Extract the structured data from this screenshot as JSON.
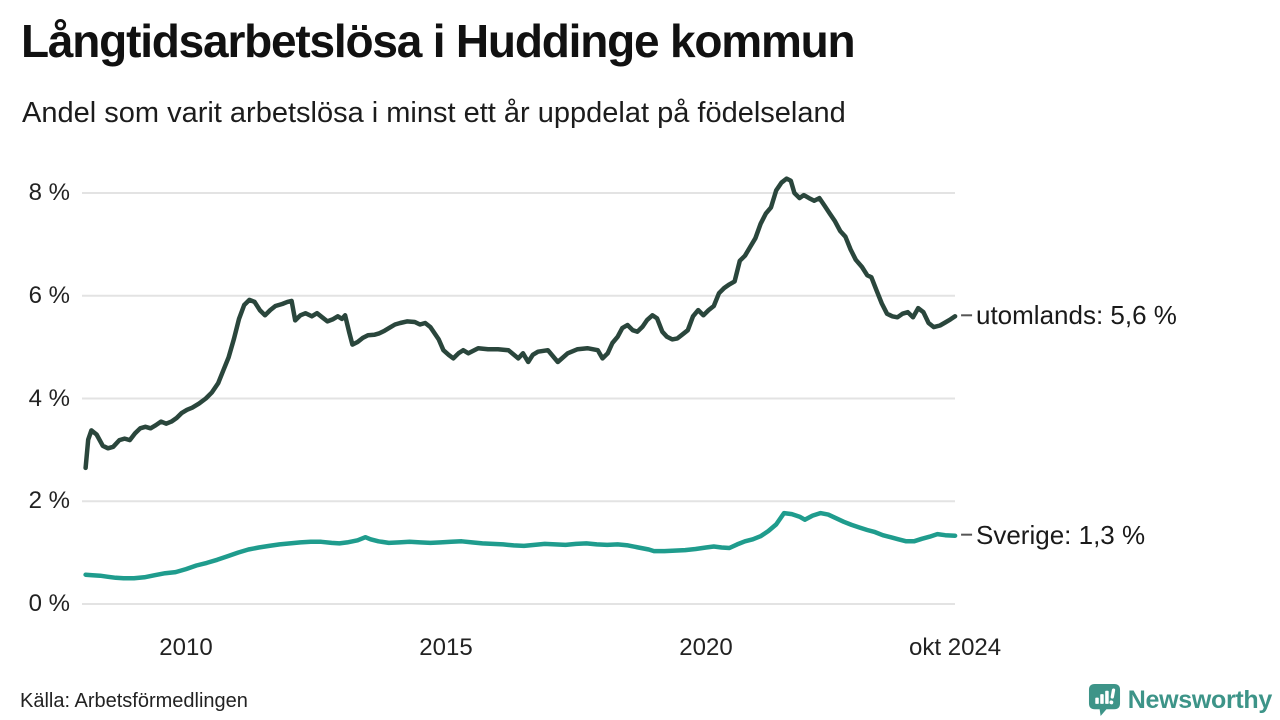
{
  "page": {
    "title": "Långtidsarbetslösa i Huddinge kommun",
    "subtitle": "Andel som varit arbetslösa i minst ett år uppdelat på födelseland",
    "source": "Källa: Arbetsförmedlingen",
    "brand": "Newsworthy"
  },
  "colors": {
    "utomlands_line": "#2a463c",
    "sverige_line": "#1f9c8d",
    "grid": "#e3e3e3",
    "connector": "#555555",
    "brand_teal": "#3d9488",
    "background": "#ffffff",
    "text": "#1a1a1a"
  },
  "chart_data": {
    "type": "line",
    "title": "Långtidsarbetslösa i Huddinge kommun",
    "subtitle": "Andel som varit arbetslösa i minst ett år uppdelat på födelseland",
    "unit": "%",
    "grid": "horizontal",
    "legend_position": "right-of-line-end",
    "xlim": [
      2008.07,
      2024.79
    ],
    "ylim": [
      0,
      8.5
    ],
    "yticks": [
      {
        "value": 0,
        "label": "0 %"
      },
      {
        "value": 2,
        "label": "2 %"
      },
      {
        "value": 4,
        "label": "4 %"
      },
      {
        "value": 6,
        "label": "6 %"
      },
      {
        "value": 8,
        "label": "8 %"
      }
    ],
    "xticks": [
      {
        "value": 2010,
        "label": "2010"
      },
      {
        "value": 2015,
        "label": "2015"
      },
      {
        "value": 2020,
        "label": "2020"
      },
      {
        "value": 2024.79,
        "label": "okt 2024"
      }
    ],
    "series": [
      {
        "name": "utomlands",
        "label": "utomlands: 5,6 %",
        "last_value_display": "5,6 %",
        "color": "#2a463c",
        "points": [
          [
            2008.07,
            2.65
          ],
          [
            2008.12,
            3.2
          ],
          [
            2008.18,
            3.38
          ],
          [
            2008.28,
            3.3
          ],
          [
            2008.4,
            3.08
          ],
          [
            2008.5,
            3.03
          ],
          [
            2008.6,
            3.06
          ],
          [
            2008.72,
            3.19
          ],
          [
            2008.82,
            3.22
          ],
          [
            2008.92,
            3.19
          ],
          [
            2009.02,
            3.32
          ],
          [
            2009.12,
            3.42
          ],
          [
            2009.22,
            3.45
          ],
          [
            2009.32,
            3.42
          ],
          [
            2009.42,
            3.48
          ],
          [
            2009.52,
            3.55
          ],
          [
            2009.62,
            3.51
          ],
          [
            2009.72,
            3.55
          ],
          [
            2009.82,
            3.62
          ],
          [
            2009.92,
            3.72
          ],
          [
            2010.02,
            3.78
          ],
          [
            2010.12,
            3.82
          ],
          [
            2010.25,
            3.9
          ],
          [
            2010.38,
            4.0
          ],
          [
            2010.5,
            4.12
          ],
          [
            2010.62,
            4.3
          ],
          [
            2010.72,
            4.55
          ],
          [
            2010.82,
            4.8
          ],
          [
            2010.92,
            5.15
          ],
          [
            2011.02,
            5.55
          ],
          [
            2011.12,
            5.82
          ],
          [
            2011.22,
            5.92
          ],
          [
            2011.32,
            5.88
          ],
          [
            2011.42,
            5.72
          ],
          [
            2011.52,
            5.62
          ],
          [
            2011.62,
            5.72
          ],
          [
            2011.72,
            5.8
          ],
          [
            2011.85,
            5.84
          ],
          [
            2011.95,
            5.88
          ],
          [
            2012.03,
            5.9
          ],
          [
            2012.1,
            5.52
          ],
          [
            2012.2,
            5.62
          ],
          [
            2012.3,
            5.66
          ],
          [
            2012.42,
            5.6
          ],
          [
            2012.52,
            5.66
          ],
          [
            2012.62,
            5.58
          ],
          [
            2012.72,
            5.5
          ],
          [
            2012.82,
            5.54
          ],
          [
            2012.92,
            5.6
          ],
          [
            2013.0,
            5.55
          ],
          [
            2013.06,
            5.62
          ],
          [
            2013.14,
            5.28
          ],
          [
            2013.2,
            5.05
          ],
          [
            2013.3,
            5.1
          ],
          [
            2013.4,
            5.18
          ],
          [
            2013.5,
            5.23
          ],
          [
            2013.62,
            5.24
          ],
          [
            2013.72,
            5.27
          ],
          [
            2013.82,
            5.32
          ],
          [
            2013.92,
            5.38
          ],
          [
            2014.02,
            5.44
          ],
          [
            2014.12,
            5.47
          ],
          [
            2014.25,
            5.5
          ],
          [
            2014.4,
            5.49
          ],
          [
            2014.5,
            5.44
          ],
          [
            2014.6,
            5.47
          ],
          [
            2014.7,
            5.39
          ],
          [
            2014.86,
            5.15
          ],
          [
            2014.95,
            4.94
          ],
          [
            2015.05,
            4.85
          ],
          [
            2015.14,
            4.78
          ],
          [
            2015.24,
            4.88
          ],
          [
            2015.33,
            4.94
          ],
          [
            2015.43,
            4.88
          ],
          [
            2015.62,
            4.98
          ],
          [
            2015.81,
            4.96
          ],
          [
            2016.0,
            4.96
          ],
          [
            2016.2,
            4.94
          ],
          [
            2016.39,
            4.78
          ],
          [
            2016.48,
            4.88
          ],
          [
            2016.58,
            4.71
          ],
          [
            2016.67,
            4.85
          ],
          [
            2016.77,
            4.91
          ],
          [
            2016.96,
            4.94
          ],
          [
            2017.15,
            4.71
          ],
          [
            2017.34,
            4.88
          ],
          [
            2017.53,
            4.96
          ],
          [
            2017.72,
            4.98
          ],
          [
            2017.92,
            4.94
          ],
          [
            2018.01,
            4.78
          ],
          [
            2018.11,
            4.88
          ],
          [
            2018.2,
            5.08
          ],
          [
            2018.3,
            5.2
          ],
          [
            2018.39,
            5.37
          ],
          [
            2018.49,
            5.43
          ],
          [
            2018.59,
            5.33
          ],
          [
            2018.68,
            5.3
          ],
          [
            2018.78,
            5.4
          ],
          [
            2018.87,
            5.53
          ],
          [
            2018.97,
            5.62
          ],
          [
            2019.06,
            5.56
          ],
          [
            2019.16,
            5.3
          ],
          [
            2019.25,
            5.2
          ],
          [
            2019.35,
            5.15
          ],
          [
            2019.45,
            5.17
          ],
          [
            2019.55,
            5.25
          ],
          [
            2019.65,
            5.33
          ],
          [
            2019.75,
            5.6
          ],
          [
            2019.85,
            5.72
          ],
          [
            2019.95,
            5.62
          ],
          [
            2020.05,
            5.72
          ],
          [
            2020.15,
            5.8
          ],
          [
            2020.25,
            6.05
          ],
          [
            2020.35,
            6.15
          ],
          [
            2020.45,
            6.22
          ],
          [
            2020.55,
            6.28
          ],
          [
            2020.65,
            6.68
          ],
          [
            2020.75,
            6.78
          ],
          [
            2020.85,
            6.95
          ],
          [
            2020.95,
            7.12
          ],
          [
            2021.05,
            7.4
          ],
          [
            2021.15,
            7.6
          ],
          [
            2021.25,
            7.72
          ],
          [
            2021.35,
            8.05
          ],
          [
            2021.45,
            8.2
          ],
          [
            2021.55,
            8.28
          ],
          [
            2021.63,
            8.24
          ],
          [
            2021.7,
            8.0
          ],
          [
            2021.8,
            7.9
          ],
          [
            2021.88,
            7.96
          ],
          [
            2021.98,
            7.9
          ],
          [
            2022.08,
            7.85
          ],
          [
            2022.18,
            7.9
          ],
          [
            2022.28,
            7.75
          ],
          [
            2022.38,
            7.6
          ],
          [
            2022.48,
            7.45
          ],
          [
            2022.58,
            7.26
          ],
          [
            2022.68,
            7.15
          ],
          [
            2022.78,
            6.9
          ],
          [
            2022.88,
            6.7
          ],
          [
            2023.0,
            6.56
          ],
          [
            2023.1,
            6.4
          ],
          [
            2023.18,
            6.36
          ],
          [
            2023.28,
            6.1
          ],
          [
            2023.38,
            5.85
          ],
          [
            2023.48,
            5.65
          ],
          [
            2023.58,
            5.6
          ],
          [
            2023.68,
            5.58
          ],
          [
            2023.78,
            5.65
          ],
          [
            2023.88,
            5.68
          ],
          [
            2023.98,
            5.58
          ],
          [
            2024.08,
            5.76
          ],
          [
            2024.18,
            5.68
          ],
          [
            2024.28,
            5.47
          ],
          [
            2024.38,
            5.39
          ],
          [
            2024.5,
            5.42
          ],
          [
            2024.6,
            5.48
          ],
          [
            2024.7,
            5.54
          ],
          [
            2024.79,
            5.6
          ]
        ]
      },
      {
        "name": "Sverige",
        "label": "Sverige: 1,3 %",
        "last_value_display": "1,3 %",
        "color": "#1f9c8d",
        "points": [
          [
            2008.07,
            0.57
          ],
          [
            2008.2,
            0.56
          ],
          [
            2008.35,
            0.55
          ],
          [
            2008.5,
            0.53
          ],
          [
            2008.65,
            0.51
          ],
          [
            2008.8,
            0.5
          ],
          [
            2009.0,
            0.5
          ],
          [
            2009.2,
            0.52
          ],
          [
            2009.4,
            0.56
          ],
          [
            2009.6,
            0.6
          ],
          [
            2009.8,
            0.62
          ],
          [
            2010.0,
            0.68
          ],
          [
            2010.2,
            0.75
          ],
          [
            2010.4,
            0.8
          ],
          [
            2010.6,
            0.86
          ],
          [
            2010.8,
            0.93
          ],
          [
            2011.0,
            1.0
          ],
          [
            2011.2,
            1.06
          ],
          [
            2011.4,
            1.1
          ],
          [
            2011.6,
            1.13
          ],
          [
            2011.8,
            1.16
          ],
          [
            2012.0,
            1.18
          ],
          [
            2012.2,
            1.2
          ],
          [
            2012.4,
            1.21
          ],
          [
            2012.6,
            1.21
          ],
          [
            2012.8,
            1.19
          ],
          [
            2012.95,
            1.18
          ],
          [
            2013.1,
            1.2
          ],
          [
            2013.3,
            1.24
          ],
          [
            2013.45,
            1.3
          ],
          [
            2013.55,
            1.26
          ],
          [
            2013.7,
            1.22
          ],
          [
            2013.9,
            1.19
          ],
          [
            2014.1,
            1.2
          ],
          [
            2014.3,
            1.21
          ],
          [
            2014.5,
            1.2
          ],
          [
            2014.7,
            1.19
          ],
          [
            2014.9,
            1.2
          ],
          [
            2015.1,
            1.21
          ],
          [
            2015.3,
            1.22
          ],
          [
            2015.5,
            1.2
          ],
          [
            2015.7,
            1.18
          ],
          [
            2015.9,
            1.17
          ],
          [
            2016.1,
            1.16
          ],
          [
            2016.3,
            1.14
          ],
          [
            2016.5,
            1.13
          ],
          [
            2016.7,
            1.15
          ],
          [
            2016.9,
            1.17
          ],
          [
            2017.1,
            1.16
          ],
          [
            2017.3,
            1.15
          ],
          [
            2017.5,
            1.17
          ],
          [
            2017.7,
            1.18
          ],
          [
            2017.9,
            1.16
          ],
          [
            2018.1,
            1.15
          ],
          [
            2018.3,
            1.16
          ],
          [
            2018.5,
            1.14
          ],
          [
            2018.7,
            1.1
          ],
          [
            2018.9,
            1.06
          ],
          [
            2019.0,
            1.03
          ],
          [
            2019.2,
            1.03
          ],
          [
            2019.4,
            1.04
          ],
          [
            2019.6,
            1.05
          ],
          [
            2019.8,
            1.07
          ],
          [
            2020.0,
            1.1
          ],
          [
            2020.15,
            1.12
          ],
          [
            2020.3,
            1.1
          ],
          [
            2020.45,
            1.09
          ],
          [
            2020.6,
            1.16
          ],
          [
            2020.75,
            1.22
          ],
          [
            2020.9,
            1.26
          ],
          [
            2021.05,
            1.32
          ],
          [
            2021.2,
            1.42
          ],
          [
            2021.35,
            1.55
          ],
          [
            2021.5,
            1.77
          ],
          [
            2021.65,
            1.75
          ],
          [
            2021.8,
            1.7
          ],
          [
            2021.9,
            1.64
          ],
          [
            2022.05,
            1.72
          ],
          [
            2022.2,
            1.77
          ],
          [
            2022.35,
            1.74
          ],
          [
            2022.5,
            1.67
          ],
          [
            2022.65,
            1.6
          ],
          [
            2022.8,
            1.54
          ],
          [
            2022.95,
            1.49
          ],
          [
            2023.1,
            1.44
          ],
          [
            2023.25,
            1.4
          ],
          [
            2023.4,
            1.34
          ],
          [
            2023.55,
            1.3
          ],
          [
            2023.7,
            1.26
          ],
          [
            2023.85,
            1.22
          ],
          [
            2024.0,
            1.22
          ],
          [
            2024.15,
            1.27
          ],
          [
            2024.3,
            1.31
          ],
          [
            2024.45,
            1.36
          ],
          [
            2024.6,
            1.34
          ],
          [
            2024.79,
            1.33
          ]
        ]
      }
    ]
  }
}
